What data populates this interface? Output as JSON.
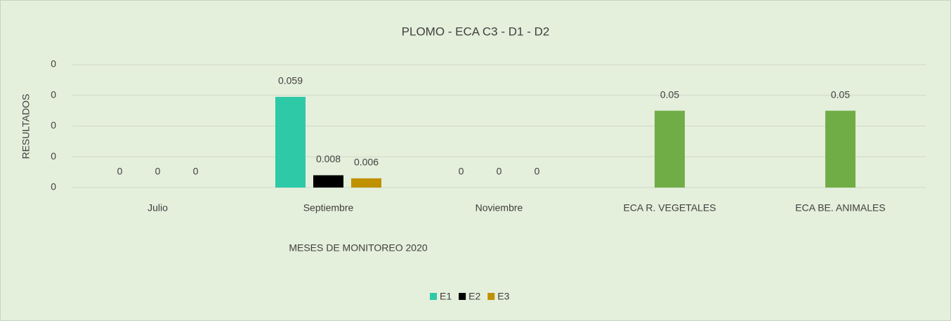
{
  "chart_data": {
    "type": "bar",
    "title": "PLOMO - ECA C3 - D1 - D2",
    "y_label": "RESULTADOS",
    "x_label": "MESES DE MONITOREO 2020",
    "categories": [
      "Julio",
      "Septiembre",
      "Noviembre",
      "ECA R. VEGETALES",
      "ECA BE. ANIMALES"
    ],
    "series": [
      {
        "name": "E1",
        "color": "#2ec9a7",
        "values": [
          0,
          0.059,
          0,
          null,
          null
        ]
      },
      {
        "name": "E2",
        "color": "#000000",
        "colors": [
          "#000000",
          "#000000",
          "#000000",
          "#70ad47",
          "#70ad47"
        ],
        "values": [
          0,
          0.008,
          0,
          0.05,
          0.05
        ]
      },
      {
        "name": "E3",
        "color": "#bf9000",
        "values": [
          0,
          0.006,
          0,
          null,
          null
        ]
      }
    ],
    "ylim": [
      0,
      0.08
    ],
    "yticks": [
      0,
      {
        "value": 0.02,
        "label": "0"
      },
      {
        "value": 0.04,
        "label": "0"
      },
      {
        "value": 0.06,
        "label": "0"
      },
      {
        "value": 0.08,
        "label": "0"
      }
    ],
    "grid": true,
    "legend": "bottom"
  }
}
